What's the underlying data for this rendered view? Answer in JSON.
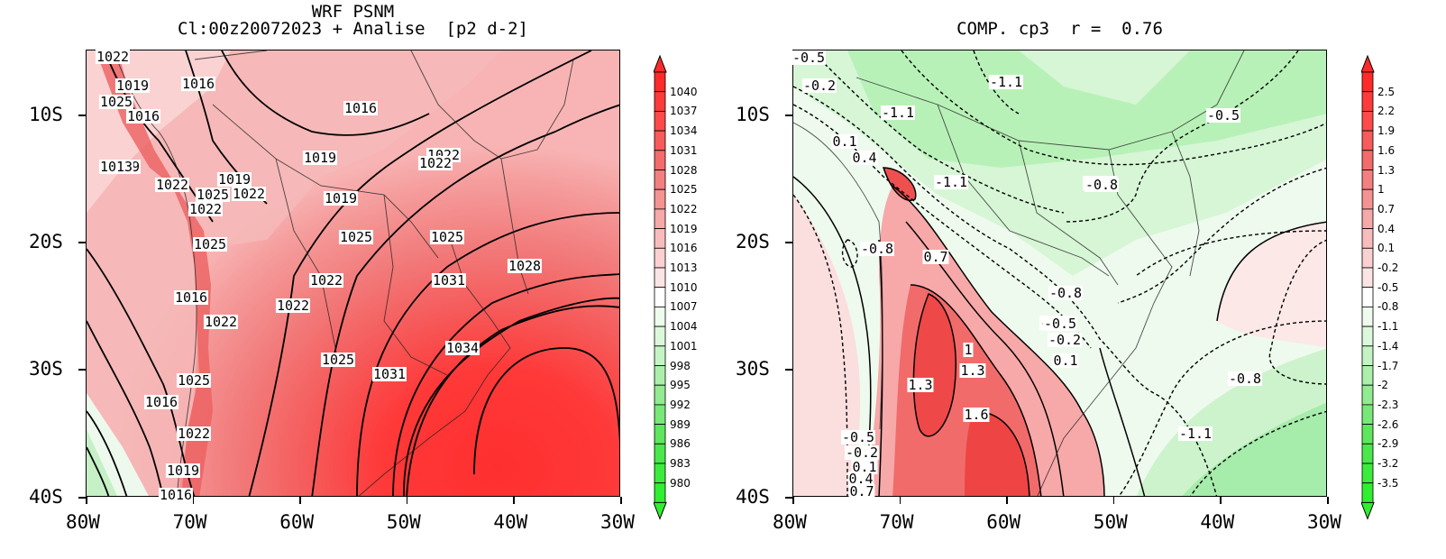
{
  "left_panel": {
    "title_line1": "WRF PSNM",
    "title_line2": "Cl:00z20072023 + Analise  [p2 d-2]",
    "x_ticks": [
      "80W",
      "70W",
      "60W",
      "50W",
      "40W",
      "30W"
    ],
    "y_ticks": [
      "10S",
      "20S",
      "30S",
      "40S"
    ],
    "contour_labels": [
      "1022",
      "1019",
      "1016",
      "1025",
      "1016",
      "1016",
      "1019",
      "1019",
      "1022",
      "1022",
      "1013",
      "1022",
      "1019",
      "1025",
      "1022",
      "1022",
      "1019",
      "1025",
      "1025",
      "1025",
      "1022",
      "1028",
      "1031",
      "1016",
      "1022",
      "1022",
      "1034",
      "1025",
      "1031",
      "1025",
      "1016",
      "1022",
      "1019",
      "1016"
    ],
    "colorbar": [
      "1040",
      "1037",
      "1034",
      "1031",
      "1028",
      "1025",
      "1022",
      "1019",
      "1016",
      "1013",
      "1010",
      "1007",
      "1004",
      "1001",
      "998",
      "995",
      "992",
      "989",
      "986",
      "983",
      "980"
    ]
  },
  "right_panel": {
    "title": "COMP. cp3  r =  0.76",
    "x_ticks": [
      "80W",
      "70W",
      "60W",
      "50W",
      "40W",
      "30W"
    ],
    "y_ticks": [
      "10S",
      "20S",
      "30S",
      "40S"
    ],
    "contour_labels": [
      "-0.5",
      "-0.2",
      "-1.1",
      "-1.1",
      "-0.5",
      "-0.8",
      "0.1",
      "0.4",
      "-1.1",
      "-0.8",
      "-0.8",
      "0.7",
      "-0.5",
      "-0.8",
      "-0.5",
      "-0.2",
      "0.1",
      "1",
      "1.3",
      "1.3",
      "-0.8",
      "1.6",
      "-1.1",
      "-0.5",
      "-0.2",
      "0.1",
      "0.4",
      "0.7"
    ],
    "colorbar": [
      "2.5",
      "2.2",
      "1.9",
      "1.6",
      "1.3",
      "1",
      "0.7",
      "0.4",
      "0.1",
      "-0.2",
      "-0.5",
      "-0.8",
      "-1.1",
      "-1.4",
      "-1.7",
      "-2",
      "-2.3",
      "-2.6",
      "-2.9",
      "-3.2",
      "-3.5"
    ]
  },
  "colors": {
    "red_high": "#ff3030",
    "red_mid": "#f47070",
    "red_low": "#fac8c8",
    "white": "#ffffff",
    "green_low": "#d8f8d8",
    "green_mid": "#a6efa6",
    "green_high": "#3ef23e"
  }
}
